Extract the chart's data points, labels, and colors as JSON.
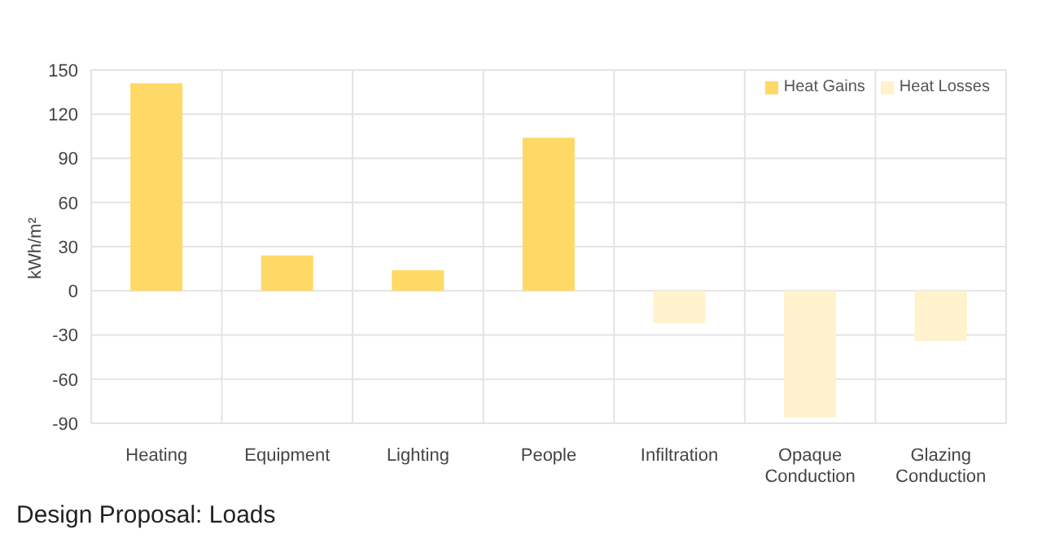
{
  "chart_data": {
    "type": "bar",
    "title": "Design Proposal: Loads",
    "ylabel": "kWh/m²",
    "categories": [
      "Heating",
      "Equipment",
      "Lighting",
      "People",
      "Infiltration",
      "Opaque Conduction",
      "Glazing Conduction"
    ],
    "series": [
      {
        "name": "Heat Gains",
        "color": "#ffd966",
        "values": [
          141,
          24,
          14,
          104,
          null,
          null,
          null
        ]
      },
      {
        "name": "Heat Losses",
        "color": "#fff2cc",
        "values": [
          null,
          null,
          null,
          null,
          -22,
          -86,
          -34
        ]
      }
    ],
    "stacked": true,
    "ylim": [
      -90,
      150
    ],
    "yticks": [
      -90,
      -60,
      -30,
      0,
      30,
      60,
      90,
      120,
      150
    ],
    "grid": true,
    "legend": "top right"
  }
}
